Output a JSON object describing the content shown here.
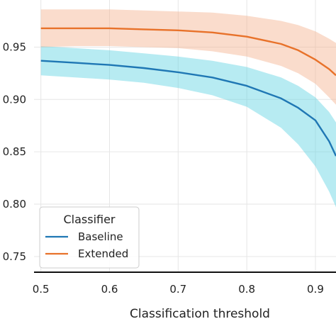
{
  "chart_data": {
    "type": "line",
    "title": "",
    "xlabel": "Classification threshold",
    "ylabel": "",
    "xlim": [
      0.49,
      0.93
    ],
    "ylim": [
      0.735,
      0.995
    ],
    "xticks": [
      0.5,
      0.6,
      0.7,
      0.8,
      0.9
    ],
    "xtick_labels": [
      "0.5",
      "0.6",
      "0.7",
      "0.8",
      "0.9"
    ],
    "yticks": [
      0.75,
      0.8,
      0.85,
      0.9,
      0.95
    ],
    "ytick_labels": [
      "0.75",
      "0.80",
      "0.85",
      "0.90",
      "0.95"
    ],
    "grid": true,
    "legend": {
      "title": "Classifier",
      "placement": "bottom-left"
    },
    "x": [
      0.5,
      0.55,
      0.6,
      0.65,
      0.7,
      0.75,
      0.8,
      0.85,
      0.875,
      0.9,
      0.92,
      0.93
    ],
    "series": [
      {
        "name": "Baseline",
        "color": "#1f77b4",
        "band_color": "#5fd3e3",
        "values": [
          0.937,
          0.935,
          0.933,
          0.93,
          0.926,
          0.921,
          0.913,
          0.901,
          0.892,
          0.88,
          0.86,
          0.846
        ],
        "lower": [
          0.923,
          0.921,
          0.919,
          0.916,
          0.911,
          0.904,
          0.893,
          0.873,
          0.857,
          0.836,
          0.812,
          0.797
        ],
        "upper": [
          0.951,
          0.949,
          0.947,
          0.944,
          0.941,
          0.937,
          0.931,
          0.921,
          0.913,
          0.902,
          0.888,
          0.878
        ]
      },
      {
        "name": "Extended",
        "color": "#e8722a",
        "band_color": "#f5b28f",
        "values": [
          0.968,
          0.968,
          0.968,
          0.967,
          0.966,
          0.964,
          0.96,
          0.953,
          0.947,
          0.938,
          0.929,
          0.923
        ],
        "lower": [
          0.95,
          0.951,
          0.951,
          0.95,
          0.949,
          0.946,
          0.941,
          0.932,
          0.925,
          0.915,
          0.902,
          0.895
        ],
        "upper": [
          0.986,
          0.986,
          0.986,
          0.985,
          0.984,
          0.983,
          0.98,
          0.975,
          0.971,
          0.965,
          0.958,
          0.954
        ]
      }
    ]
  }
}
